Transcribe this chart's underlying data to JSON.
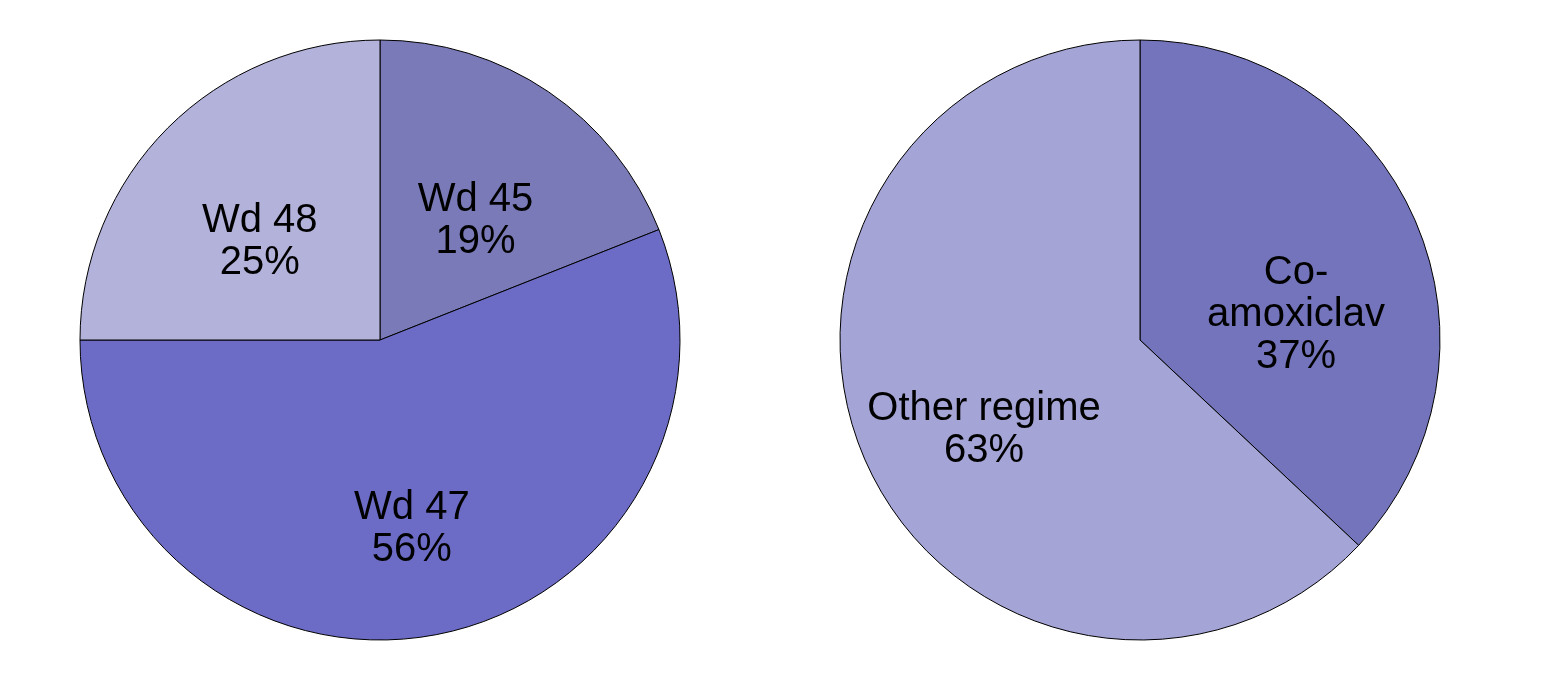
{
  "chart_data": [
    {
      "type": "pie",
      "categories": [
        "Wd 45",
        "Wd 47",
        "Wd 48"
      ],
      "values": [
        19,
        56,
        25
      ],
      "colors": [
        "#7a7ab8",
        "#6c6cc6",
        "#b2b2da"
      ],
      "value_labels": [
        "19%",
        "56%",
        "25%"
      ]
    },
    {
      "type": "pie",
      "categories": [
        "Co-amoxiclav",
        "Other regime"
      ],
      "values": [
        37,
        63
      ],
      "colors": [
        "#7474bc",
        "#a4a4d6"
      ],
      "value_labels": [
        "37%",
        "63%"
      ]
    }
  ]
}
